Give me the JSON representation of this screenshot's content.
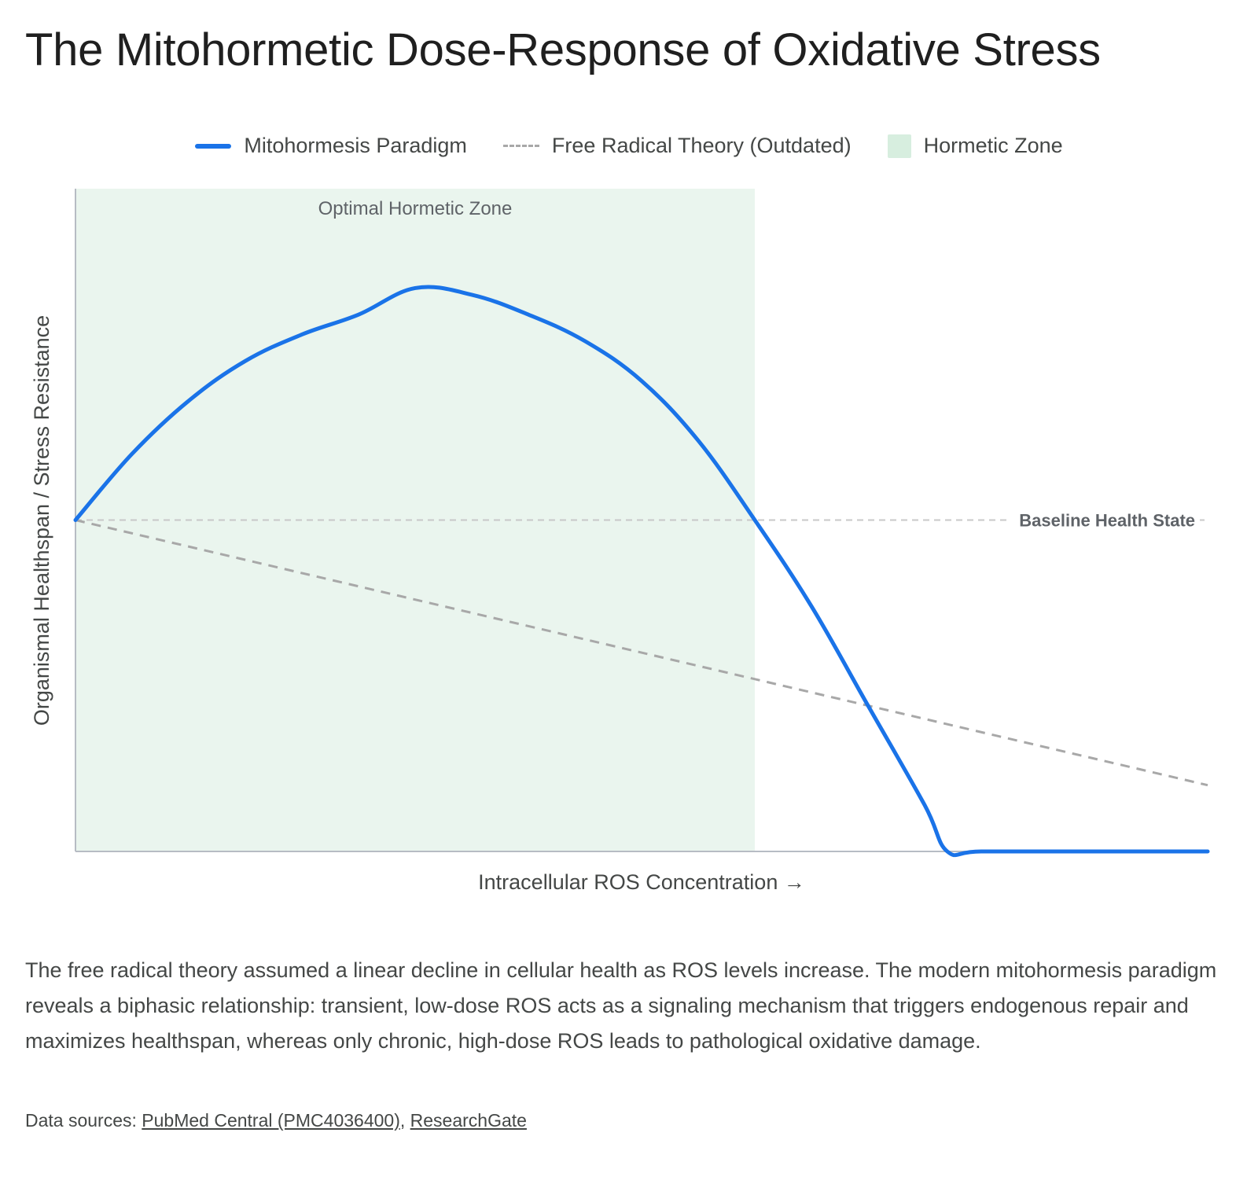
{
  "title": "The Mitohormetic Dose-Response of Oxidative Stress",
  "legend": [
    {
      "label": "Mitohormesis Paradigm",
      "style": "solid",
      "color": "#1a73e8"
    },
    {
      "label": "Free Radical Theory (Outdated)",
      "style": "dashed",
      "color": "#a8a8a8"
    },
    {
      "label": "Hormetic Zone",
      "style": "box",
      "color": "#d7eedf"
    }
  ],
  "chart_data": {
    "type": "line",
    "xlabel": "Intracellular ROS Concentration →",
    "ylabel": "Organismal Healthspan / Stress Resistance",
    "xlim": [
      0,
      1
    ],
    "ylim": [
      0,
      1
    ],
    "grid": false,
    "legend_position": "top",
    "zone": {
      "label": "Optimal Hormetic Zone",
      "x_range": [
        0,
        0.6
      ],
      "color": "#eaf5ee"
    },
    "baseline": {
      "label": "Baseline Health State",
      "y": 0.5
    },
    "series": [
      {
        "name": "Mitohormesis Paradigm",
        "style": "solid",
        "color": "#1a73e8",
        "x": [
          0,
          0.05,
          0.1,
          0.15,
          0.2,
          0.25,
          0.3,
          0.35,
          0.4,
          0.45,
          0.5,
          0.55,
          0.6,
          0.65,
          0.7,
          0.75,
          0.77,
          0.8,
          0.9,
          1.0
        ],
        "y": [
          0.5,
          0.6,
          0.68,
          0.74,
          0.78,
          0.81,
          0.85,
          0.84,
          0.81,
          0.77,
          0.71,
          0.62,
          0.5,
          0.37,
          0.22,
          0.07,
          0.0,
          0.0,
          0.0,
          0.0
        ]
      },
      {
        "name": "Free Radical Theory (Outdated)",
        "style": "dashed",
        "color": "#a8a8a8",
        "x": [
          0,
          1
        ],
        "y": [
          0.5,
          0.1
        ]
      }
    ]
  },
  "description": "The free radical theory assumed a linear decline in cellular health as ROS levels increase. The modern mitohormesis paradigm reveals a biphasic relationship: transient, low-dose ROS acts as a signaling mechanism that triggers endogenous repair and maximizes healthspan, whereas only chronic, high-dose ROS leads to pathological oxidative damage.",
  "sources": {
    "prefix": "Data sources:",
    "links": [
      "PubMed Central (PMC4036400)",
      "ResearchGate"
    ],
    "separator": ","
  }
}
